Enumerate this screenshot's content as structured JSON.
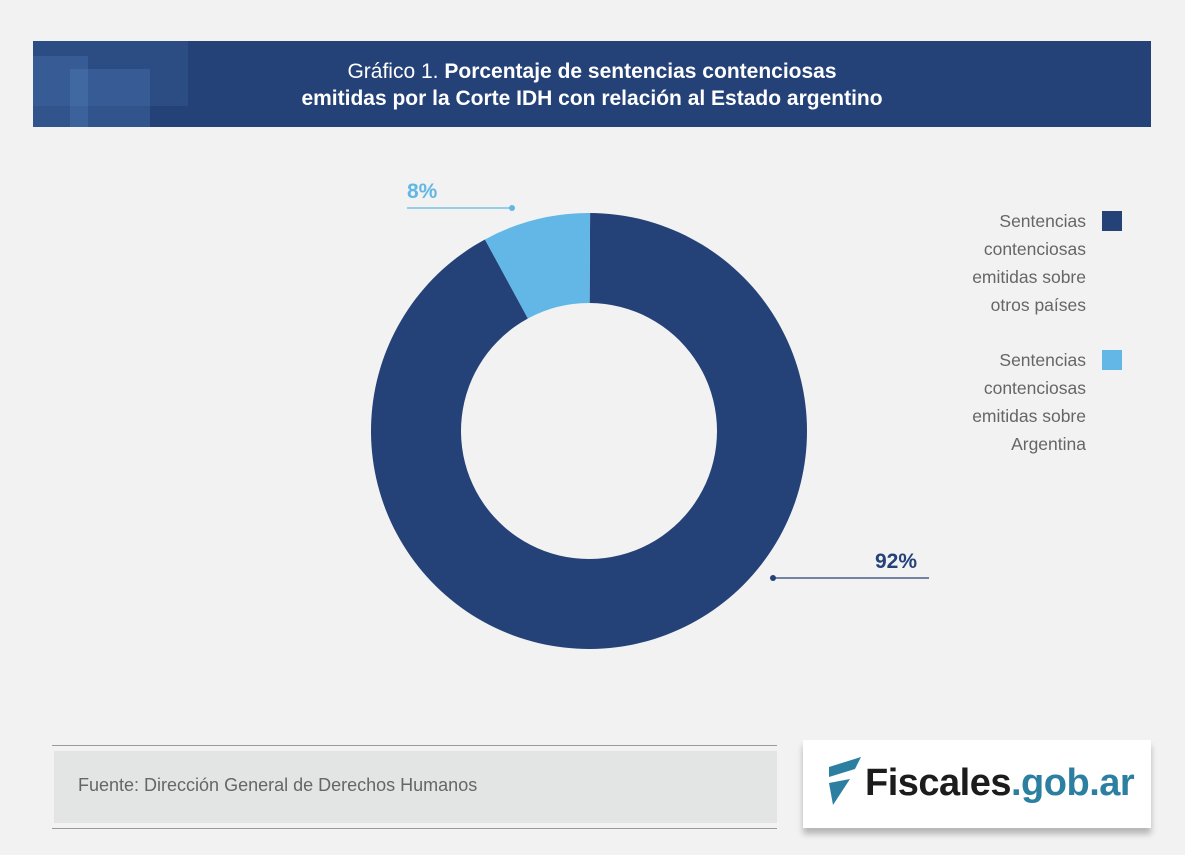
{
  "header": {
    "title_prefix": "Gráfico 1.",
    "title_bold_line1": "Porcentaje de sentencias contenciosas",
    "title_bold_line2": "emitidas por la Corte IDH con relación al Estado argentino"
  },
  "chart_data": {
    "type": "pie",
    "donut": true,
    "title": "Gráfico 1. Porcentaje de sentencias contenciosas emitidas por la Corte IDH con relación al Estado argentino",
    "series": [
      {
        "name": "Sentencias contenciosas emitidas sobre otros países",
        "value": 92,
        "label": "92%",
        "color": "#244278"
      },
      {
        "name": "Sentencias contenciosas emitidas sobre Argentina",
        "value": 8,
        "label": "8%",
        "color": "#63b7e6"
      }
    ],
    "legend_position": "right"
  },
  "footer": {
    "source": "Fuente: Dirección General de Derechos Humanos"
  },
  "logo": {
    "part1": "Fiscales",
    "part2": ".gob.ar"
  }
}
